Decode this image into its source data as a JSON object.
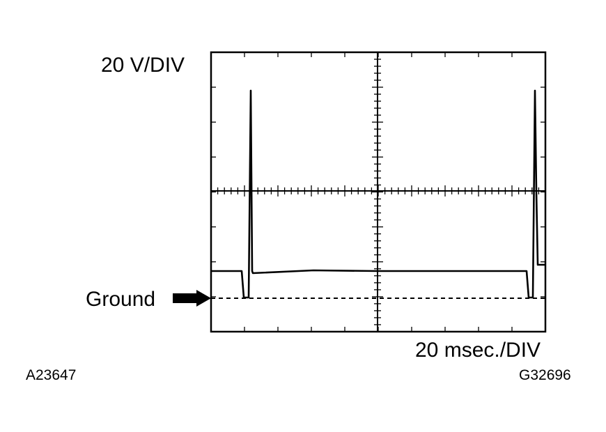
{
  "labels": {
    "volts": "20 V/DIV",
    "ground": "Ground",
    "time": "20 msec./DIV",
    "left_code": "A23647",
    "right_code": "G32696"
  }
}
